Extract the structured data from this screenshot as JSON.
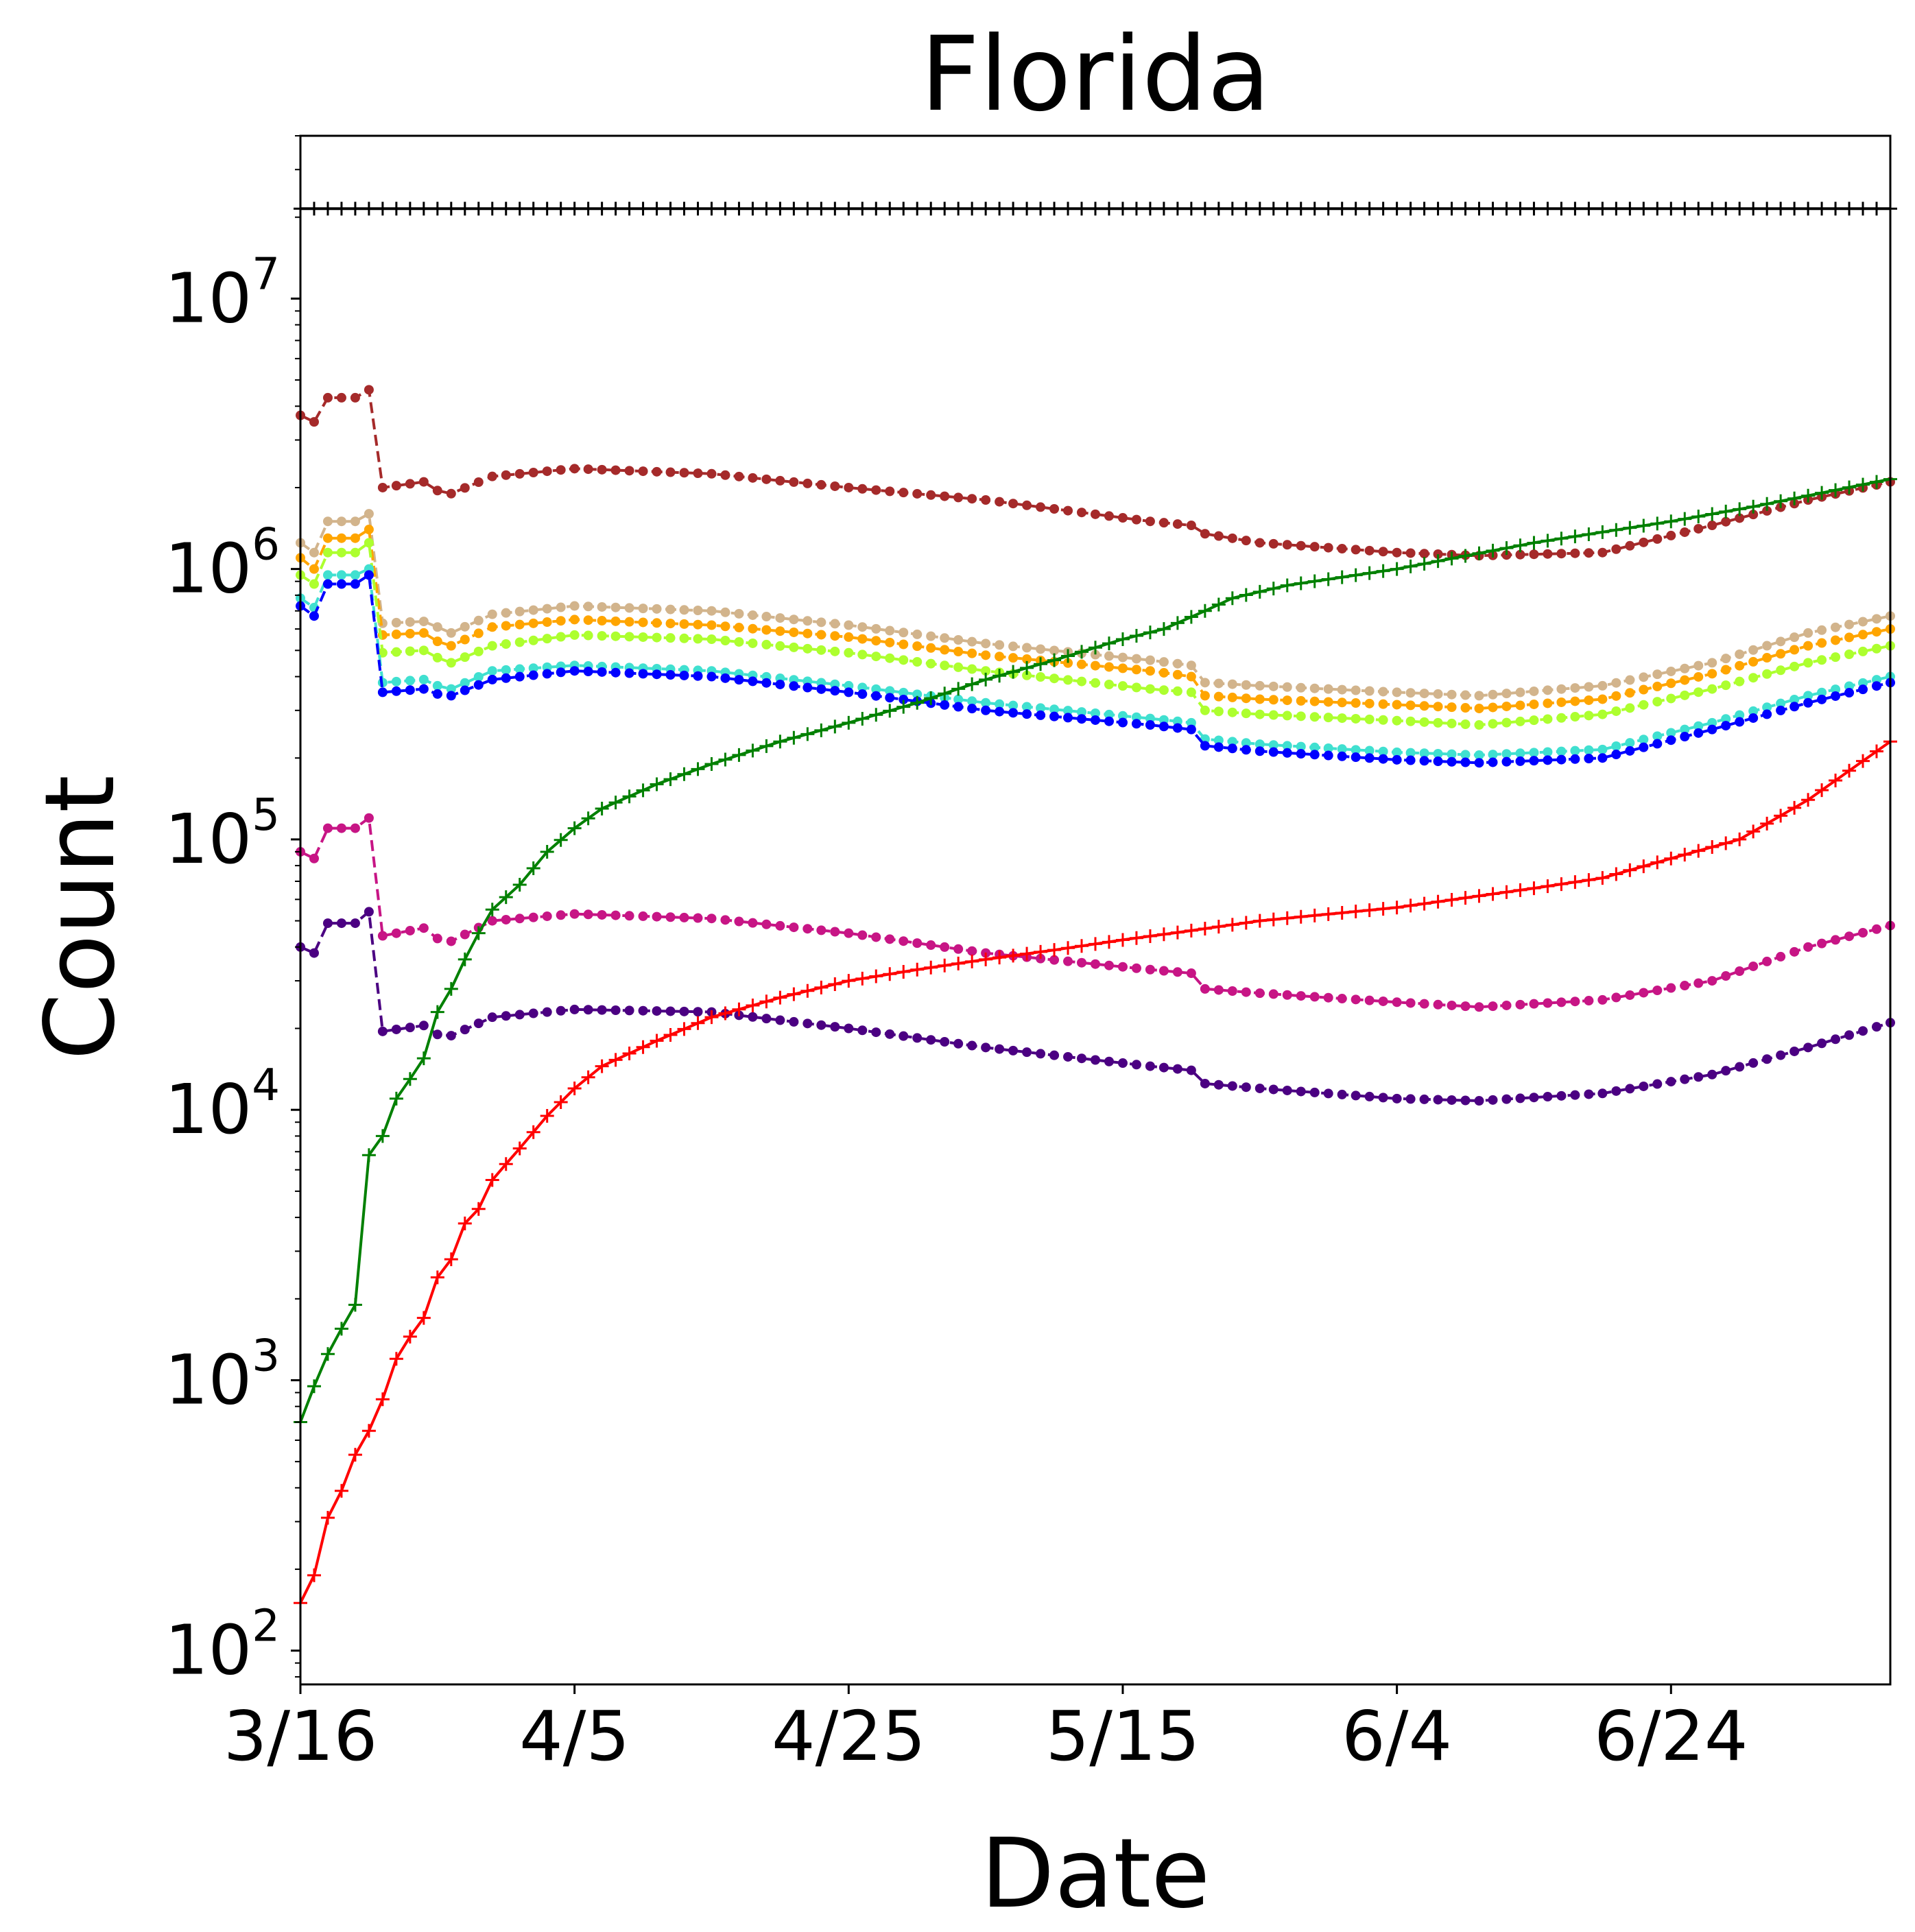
{
  "chart_data": {
    "type": "line",
    "title": "Florida",
    "xlabel": "Date",
    "ylabel": "Count",
    "yscale": "log",
    "x_start": "3/16",
    "num_days": 117,
    "x_tick_labels": [
      "3/16",
      "4/5",
      "4/25",
      "5/15",
      "6/4",
      "6/24"
    ],
    "y_tick_labels": [
      {
        "base": "10",
        "exp": "2",
        "value": 100
      },
      {
        "base": "10",
        "exp": "3",
        "value": 1000
      },
      {
        "base": "10",
        "exp": "4",
        "value": 10000
      },
      {
        "base": "10",
        "exp": "5",
        "value": 100000
      },
      {
        "base": "10",
        "exp": "6",
        "value": 1000000
      },
      {
        "base": "10",
        "exp": "7",
        "value": 10000000
      }
    ],
    "ylim": [
      75,
      40000000
    ],
    "grid": false,
    "legend": "none",
    "series": [
      {
        "color": "#000000",
        "style": "solid",
        "marker": "plus",
        "keypoints": [
          [
            0,
            21500000
          ],
          [
            116,
            21500000
          ]
        ]
      },
      {
        "color": "#a52a2a",
        "style": "dashed",
        "marker": "dot",
        "keypoints": [
          [
            0,
            3700000
          ],
          [
            1,
            3500000
          ],
          [
            2,
            4300000
          ],
          [
            4,
            4300000
          ],
          [
            5,
            4600000
          ],
          [
            6,
            2000000
          ],
          [
            9,
            2100000
          ],
          [
            10,
            1950000
          ],
          [
            11,
            1900000
          ],
          [
            14,
            2200000
          ],
          [
            20,
            2350000
          ],
          [
            30,
            2250000
          ],
          [
            40,
            2000000
          ],
          [
            50,
            1800000
          ],
          [
            62,
            1500000
          ],
          [
            65,
            1450000
          ],
          [
            66,
            1350000
          ],
          [
            70,
            1250000
          ],
          [
            80,
            1150000
          ],
          [
            86,
            1120000
          ],
          [
            95,
            1150000
          ],
          [
            103,
            1450000
          ],
          [
            110,
            1800000
          ],
          [
            116,
            2100000
          ]
        ]
      },
      {
        "color": "#d2b48c",
        "style": "dashed",
        "marker": "dot",
        "keypoints": [
          [
            0,
            1250000
          ],
          [
            1,
            1150000
          ],
          [
            2,
            1500000
          ],
          [
            4,
            1500000
          ],
          [
            5,
            1600000
          ],
          [
            6,
            630000
          ],
          [
            9,
            640000
          ],
          [
            10,
            610000
          ],
          [
            11,
            580000
          ],
          [
            14,
            680000
          ],
          [
            20,
            730000
          ],
          [
            30,
            700000
          ],
          [
            40,
            620000
          ],
          [
            50,
            530000
          ],
          [
            62,
            460000
          ],
          [
            65,
            440000
          ],
          [
            66,
            380000
          ],
          [
            70,
            370000
          ],
          [
            80,
            350000
          ],
          [
            86,
            340000
          ],
          [
            95,
            370000
          ],
          [
            103,
            450000
          ],
          [
            110,
            580000
          ],
          [
            116,
            670000
          ]
        ]
      },
      {
        "color": "#ffa500",
        "style": "dashed",
        "marker": "dot",
        "keypoints": [
          [
            0,
            1100000
          ],
          [
            1,
            1000000
          ],
          [
            2,
            1300000
          ],
          [
            4,
            1300000
          ],
          [
            5,
            1400000
          ],
          [
            6,
            570000
          ],
          [
            9,
            580000
          ],
          [
            10,
            540000
          ],
          [
            11,
            520000
          ],
          [
            14,
            610000
          ],
          [
            20,
            650000
          ],
          [
            30,
            620000
          ],
          [
            40,
            560000
          ],
          [
            50,
            480000
          ],
          [
            62,
            420000
          ],
          [
            65,
            400000
          ],
          [
            66,
            340000
          ],
          [
            70,
            330000
          ],
          [
            80,
            315000
          ],
          [
            86,
            305000
          ],
          [
            95,
            330000
          ],
          [
            103,
            410000
          ],
          [
            110,
            520000
          ],
          [
            116,
            600000
          ]
        ]
      },
      {
        "color": "#adff2f",
        "style": "dashed",
        "marker": "dot",
        "keypoints": [
          [
            0,
            950000
          ],
          [
            1,
            880000
          ],
          [
            2,
            1150000
          ],
          [
            4,
            1150000
          ],
          [
            5,
            1250000
          ],
          [
            6,
            490000
          ],
          [
            9,
            500000
          ],
          [
            10,
            470000
          ],
          [
            11,
            450000
          ],
          [
            14,
            520000
          ],
          [
            20,
            570000
          ],
          [
            30,
            550000
          ],
          [
            40,
            490000
          ],
          [
            50,
            420000
          ],
          [
            62,
            360000
          ],
          [
            65,
            350000
          ],
          [
            66,
            300000
          ],
          [
            70,
            290000
          ],
          [
            80,
            275000
          ],
          [
            86,
            265000
          ],
          [
            95,
            290000
          ],
          [
            103,
            360000
          ],
          [
            110,
            450000
          ],
          [
            116,
            520000
          ]
        ]
      },
      {
        "color": "#40e0d0",
        "style": "dashed",
        "marker": "dot",
        "keypoints": [
          [
            0,
            780000
          ],
          [
            1,
            720000
          ],
          [
            2,
            950000
          ],
          [
            4,
            950000
          ],
          [
            5,
            1000000
          ],
          [
            6,
            380000
          ],
          [
            9,
            390000
          ],
          [
            10,
            370000
          ],
          [
            11,
            360000
          ],
          [
            14,
            420000
          ],
          [
            20,
            440000
          ],
          [
            30,
            420000
          ],
          [
            40,
            370000
          ],
          [
            50,
            320000
          ],
          [
            62,
            280000
          ],
          [
            65,
            270000
          ],
          [
            66,
            235000
          ],
          [
            70,
            225000
          ],
          [
            80,
            210000
          ],
          [
            86,
            205000
          ],
          [
            95,
            215000
          ],
          [
            103,
            270000
          ],
          [
            110,
            340000
          ],
          [
            116,
            400000
          ]
        ]
      },
      {
        "color": "#0000ff",
        "style": "dashed",
        "marker": "dot",
        "keypoints": [
          [
            0,
            730000
          ],
          [
            1,
            670000
          ],
          [
            2,
            880000
          ],
          [
            4,
            880000
          ],
          [
            5,
            950000
          ],
          [
            6,
            350000
          ],
          [
            9,
            360000
          ],
          [
            10,
            345000
          ],
          [
            11,
            340000
          ],
          [
            14,
            390000
          ],
          [
            20,
            420000
          ],
          [
            30,
            400000
          ],
          [
            40,
            350000
          ],
          [
            50,
            300000
          ],
          [
            62,
            265000
          ],
          [
            65,
            255000
          ],
          [
            66,
            222000
          ],
          [
            70,
            212000
          ],
          [
            80,
            197000
          ],
          [
            86,
            192000
          ],
          [
            95,
            200000
          ],
          [
            103,
            255000
          ],
          [
            110,
            320000
          ],
          [
            116,
            380000
          ]
        ]
      },
      {
        "color": "#c71585",
        "style": "dashed",
        "marker": "dot",
        "keypoints": [
          [
            0,
            90000
          ],
          [
            1,
            85000
          ],
          [
            2,
            110000
          ],
          [
            4,
            110000
          ],
          [
            5,
            120000
          ],
          [
            6,
            44000
          ],
          [
            9,
            47000
          ],
          [
            10,
            43000
          ],
          [
            11,
            42000
          ],
          [
            14,
            50000
          ],
          [
            20,
            53000
          ],
          [
            30,
            51000
          ],
          [
            40,
            45000
          ],
          [
            50,
            38000
          ],
          [
            62,
            33000
          ],
          [
            65,
            32000
          ],
          [
            66,
            28000
          ],
          [
            70,
            27000
          ],
          [
            80,
            25000
          ],
          [
            86,
            24000
          ],
          [
            95,
            25500
          ],
          [
            103,
            30000
          ],
          [
            110,
            40000
          ],
          [
            116,
            48000
          ]
        ]
      },
      {
        "color": "#4b0082",
        "style": "dashed",
        "marker": "dot",
        "keypoints": [
          [
            0,
            40000
          ],
          [
            1,
            38000
          ],
          [
            2,
            49000
          ],
          [
            4,
            49000
          ],
          [
            5,
            54000
          ],
          [
            6,
            19500
          ],
          [
            9,
            20500
          ],
          [
            10,
            19000
          ],
          [
            11,
            18800
          ],
          [
            14,
            22000
          ],
          [
            20,
            23500
          ],
          [
            30,
            23000
          ],
          [
            40,
            20000
          ],
          [
            50,
            17000
          ],
          [
            62,
            14500
          ],
          [
            65,
            14000
          ],
          [
            66,
            12500
          ],
          [
            70,
            12000
          ],
          [
            80,
            11000
          ],
          [
            86,
            10800
          ],
          [
            95,
            11500
          ],
          [
            103,
            13500
          ],
          [
            110,
            17000
          ],
          [
            116,
            21000
          ]
        ]
      },
      {
        "color": "#008000",
        "style": "solid",
        "marker": "plus",
        "keypoints": [
          [
            0,
            700
          ],
          [
            1,
            950
          ],
          [
            2,
            1250
          ],
          [
            3,
            1550
          ],
          [
            4,
            1900
          ],
          [
            5,
            6800
          ],
          [
            6,
            8000
          ],
          [
            7,
            11000
          ],
          [
            8,
            13000
          ],
          [
            9,
            15500
          ],
          [
            10,
            23000
          ],
          [
            11,
            28000
          ],
          [
            12,
            36000
          ],
          [
            13,
            45000
          ],
          [
            14,
            55000
          ],
          [
            16,
            68000
          ],
          [
            18,
            90000
          ],
          [
            20,
            110000
          ],
          [
            22,
            130000
          ],
          [
            26,
            160000
          ],
          [
            30,
            190000
          ],
          [
            35,
            230000
          ],
          [
            40,
            270000
          ],
          [
            45,
            320000
          ],
          [
            50,
            390000
          ],
          [
            55,
            460000
          ],
          [
            60,
            550000
          ],
          [
            63,
            600000
          ],
          [
            66,
            700000
          ],
          [
            68,
            780000
          ],
          [
            72,
            870000
          ],
          [
            80,
            1000000
          ],
          [
            90,
            1250000
          ],
          [
            100,
            1500000
          ],
          [
            106,
            1700000
          ],
          [
            116,
            2150000
          ]
        ]
      },
      {
        "color": "#ff0000",
        "style": "solid",
        "marker": "plus",
        "keypoints": [
          [
            0,
            150
          ],
          [
            1,
            190
          ],
          [
            2,
            310
          ],
          [
            3,
            390
          ],
          [
            4,
            530
          ],
          [
            5,
            650
          ],
          [
            6,
            850
          ],
          [
            7,
            1200
          ],
          [
            8,
            1450
          ],
          [
            9,
            1700
          ],
          [
            10,
            2400
          ],
          [
            11,
            2800
          ],
          [
            12,
            3800
          ],
          [
            13,
            4300
          ],
          [
            14,
            5500
          ],
          [
            15,
            6300
          ],
          [
            16,
            7200
          ],
          [
            18,
            9500
          ],
          [
            20,
            12000
          ],
          [
            22,
            14500
          ],
          [
            26,
            18000
          ],
          [
            30,
            22000
          ],
          [
            35,
            26000
          ],
          [
            40,
            30000
          ],
          [
            45,
            33000
          ],
          [
            50,
            36000
          ],
          [
            55,
            39000
          ],
          [
            60,
            42500
          ],
          [
            65,
            46000
          ],
          [
            70,
            50000
          ],
          [
            80,
            56000
          ],
          [
            90,
            66000
          ],
          [
            95,
            72000
          ],
          [
            100,
            85000
          ],
          [
            105,
            100000
          ],
          [
            110,
            140000
          ],
          [
            116,
            230000
          ]
        ]
      }
    ]
  }
}
